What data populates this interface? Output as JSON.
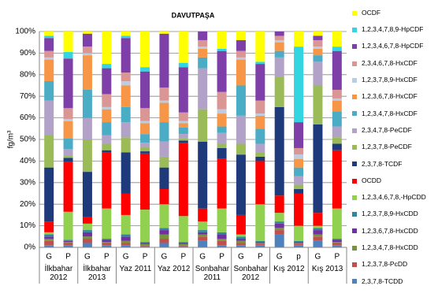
{
  "chart_data": {
    "type": "stacked_bar",
    "title": "DAVUTPAŞA",
    "y_label": "fg/m³",
    "categories": [
      "G",
      "P",
      "G",
      "P",
      "G",
      "P",
      "G",
      "P",
      "G",
      "P",
      "G",
      "P",
      "G",
      "p",
      "G",
      "P"
    ],
    "groups": [
      "İlkbahar 2012",
      "İlkbahar 2013",
      "Yaz 2011",
      "Yaz 2012",
      "Sonbahar 2011",
      "Sonbahar 2012",
      "Kış 2012",
      "Kış 2013"
    ],
    "ylim": [
      0,
      100
    ],
    "yticks": [
      {
        "value": 0,
        "label": "0%"
      },
      {
        "value": 10,
        "label": "10%"
      },
      {
        "value": 20,
        "label": "20%"
      },
      {
        "value": 30,
        "label": "30%"
      },
      {
        "value": 40,
        "label": "40%"
      },
      {
        "value": 50,
        "label": "50%"
      },
      {
        "value": 60,
        "label": "60%"
      },
      {
        "value": 70,
        "label": "70%"
      },
      {
        "value": 80,
        "label": "80%"
      },
      {
        "value": 90,
        "label": "90%"
      },
      {
        "value": 100,
        "label": "100%"
      }
    ],
    "grid": true,
    "series": [
      {
        "name": "2,3,7,8-TCDD",
        "color": "#4f81bd",
        "values": [
          1,
          1,
          2,
          1,
          1,
          0.5,
          2,
          0.5,
          3,
          1,
          1,
          1,
          6,
          1,
          3,
          1
        ]
      },
      {
        "name": "1,2,3,7,8-PcDD",
        "color": "#c0504d",
        "values": [
          2,
          1,
          2,
          1,
          1,
          0.5,
          2,
          0.5,
          2,
          2,
          1,
          0.5,
          2,
          0.5,
          2,
          1
        ]
      },
      {
        "name": "1,2,3,4,7,8-HxCDD",
        "color": "#77933c",
        "values": [
          1,
          0.5,
          1,
          0.5,
          1,
          0.5,
          2,
          0.5,
          1,
          1,
          1,
          0.5,
          1,
          0.5,
          1,
          0.5
        ]
      },
      {
        "name": "1,2,3,6,7,8-HxCDD",
        "color": "#7030a0",
        "values": [
          1,
          0.5,
          2,
          1,
          2,
          0.5,
          2,
          0.5,
          1,
          2,
          1,
          0.5,
          2,
          0.5,
          2,
          1
        ]
      },
      {
        "name": "1,2,3,7,8,9-HxCDD",
        "color": "#31859c",
        "values": [
          1,
          0.5,
          1,
          0.5,
          1,
          0.5,
          1,
          0.5,
          1,
          1,
          1,
          0.5,
          1,
          0.5,
          1,
          0.5
        ]
      },
      {
        "name": "1,2,3,4,6,7,8,-HpCDD",
        "color": "#92d050",
        "values": [
          1,
          13,
          3,
          14,
          9,
          15,
          11,
          12,
          4,
          11,
          1,
          17,
          4,
          7,
          1,
          14
        ]
      },
      {
        "name": "OCDD",
        "color": "#ff0000",
        "values": [
          5,
          23,
          3,
          26,
          10,
          26,
          7,
          34,
          6,
          23,
          9,
          20,
          8,
          15,
          6,
          27
        ]
      },
      {
        "name": "2,3,7,8-TCDF",
        "color": "#1f3a7a",
        "values": [
          25,
          2,
          21,
          1,
          19,
          1,
          10,
          1,
          31,
          5,
          28,
          2,
          41,
          2,
          41,
          3
        ]
      },
      {
        "name": "1,2,3,7,8-PeCDF",
        "color": "#9bbb59",
        "values": [
          15,
          1,
          15,
          3,
          7,
          2,
          5,
          1,
          15,
          2,
          5,
          2,
          14,
          2,
          18,
          3
        ]
      },
      {
        "name": "2,3,4,7,8-PeCDF",
        "color": "#b3a2c7",
        "values": [
          16,
          3,
          10,
          4,
          7,
          2,
          7,
          2,
          19,
          5,
          13,
          4,
          9,
          4,
          11,
          5
        ]
      },
      {
        "name": "1,2,3,4,7,8-HxCDF",
        "color": "#4bacc6",
        "values": [
          9,
          5,
          13,
          6,
          7,
          4,
          9,
          3,
          5,
          3,
          14,
          7,
          3,
          4,
          3,
          7
        ]
      },
      {
        "name": "1,2,3,6,7,8-HxCDF",
        "color": "#f79646",
        "values": [
          10,
          8,
          16,
          6,
          10,
          5,
          9,
          2,
          4,
          6,
          12,
          6,
          4,
          4,
          3,
          5
        ]
      },
      {
        "name": "1,2,3,7,8,9-HxCDF",
        "color": "#b9cde5",
        "values": [
          1,
          1,
          1,
          1,
          2,
          1,
          1,
          1,
          1,
          2,
          1,
          1,
          1,
          2,
          1,
          1
        ]
      },
      {
        "name": "2,3,4,6,7,8-HxCDF",
        "color": "#d99694",
        "values": [
          3,
          5,
          3,
          6,
          4,
          6,
          6,
          4,
          3,
          8,
          3,
          6,
          2,
          3,
          3,
          4
        ]
      },
      {
        "name": "1,2,3,4,6,7,8-HpCDF",
        "color": "#7f3fa8",
        "values": [
          6,
          23,
          6,
          12,
          16,
          17,
          25,
          21,
          4,
          19,
          5,
          17,
          2,
          12,
          2,
          18
        ]
      },
      {
        "name": "1,2,3,4,7,8,9-HpCDF",
        "color": "#33d6e0",
        "values": [
          1,
          3,
          0,
          2,
          1,
          2,
          0,
          2,
          0,
          1,
          0,
          1,
          0,
          35,
          0,
          2
        ]
      },
      {
        "name": "OCDF",
        "color": "#ffff00",
        "values": [
          2,
          9.5,
          1,
          15,
          2,
          16.5,
          1,
          14.5,
          0,
          8,
          4,
          14,
          0,
          7,
          2,
          7
        ]
      }
    ]
  }
}
